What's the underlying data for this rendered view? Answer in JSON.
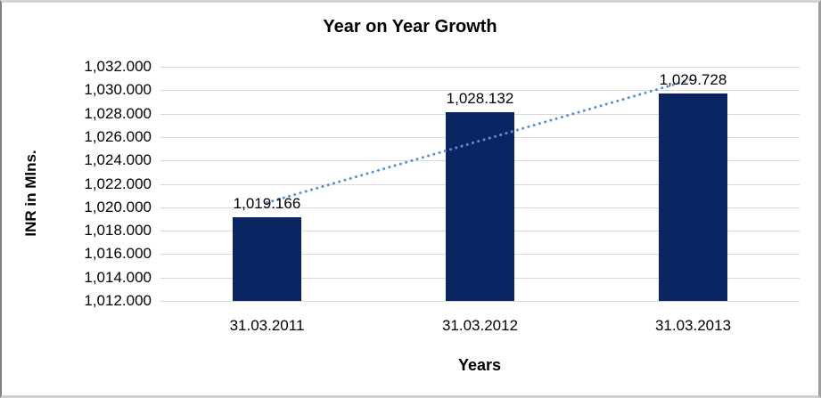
{
  "chart_data": {
    "type": "bar",
    "title": "Year on Year Growth",
    "xlabel": "Years",
    "ylabel": "INR in Mlns.",
    "categories": [
      "31.03.2011",
      "31.03.2012",
      "31.03.2013"
    ],
    "values": [
      1019.166,
      1028.132,
      1029.728
    ],
    "data_labels": [
      "1,019.166",
      "1,028.132",
      "1,029.728"
    ],
    "ylim": [
      1012,
      1032
    ],
    "y_ticks": [
      {
        "value": 1032,
        "label": "1,032.000"
      },
      {
        "value": 1030,
        "label": "1,030.000"
      },
      {
        "value": 1028,
        "label": "1,028.000"
      },
      {
        "value": 1026,
        "label": "1,026.000"
      },
      {
        "value": 1024,
        "label": "1,024.000"
      },
      {
        "value": 1022,
        "label": "1,022.000"
      },
      {
        "value": 1020,
        "label": "1,020.000"
      },
      {
        "value": 1018,
        "label": "1,018.000"
      },
      {
        "value": 1016,
        "label": "1,016.000"
      },
      {
        "value": 1014,
        "label": "1,014.000"
      },
      {
        "value": 1012,
        "label": "1,012.000"
      }
    ],
    "grid": "horizontal-major",
    "legend": "none",
    "trendline": {
      "type": "linear",
      "style": "dotted"
    },
    "colors": {
      "bar_fill": "#0b2563",
      "trendline": "#5b8fd6",
      "gridline": "#d9d9d9",
      "text": "#000000",
      "background": "#ffffff"
    }
  }
}
